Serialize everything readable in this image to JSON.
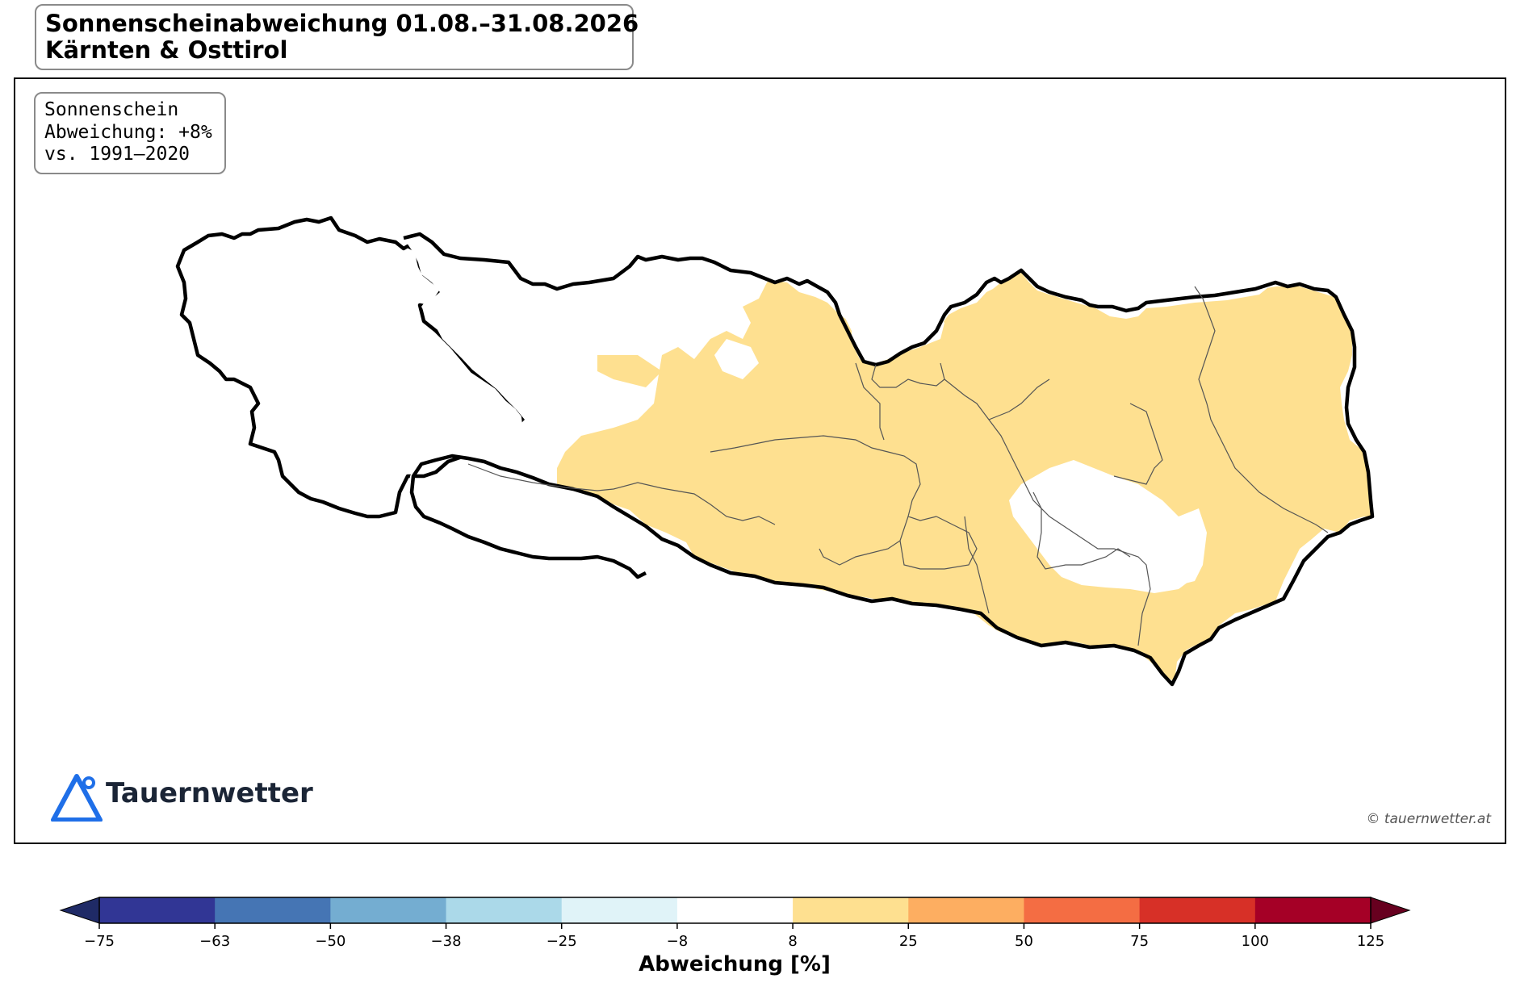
{
  "title": {
    "line1": "Sonnenscheinabweichung 01.08.–31.08.2026",
    "line2": "Kärnten & Osttirol"
  },
  "info_box": {
    "line1": "Sonnenschein",
    "line2": "Abweichung: +8%",
    "line3": "vs. 1991–2020"
  },
  "brand": {
    "name": "Tauernwetter",
    "icon": "mountain-triangle-icon",
    "color": "#1f6fe8"
  },
  "copyright": "© tauernwetter.at",
  "colorbar": {
    "label": "Abweichung [%]",
    "ticks": [
      "−75",
      "−63",
      "−50",
      "−38",
      "−25",
      "−8",
      "8",
      "25",
      "50",
      "75",
      "100",
      "125"
    ],
    "colors": [
      "#313695",
      "#4575b4",
      "#74add1",
      "#abd9e9",
      "#e0f3f8",
      "#ffffff",
      "#fee090",
      "#fdae61",
      "#f46d43",
      "#d73027",
      "#a50026"
    ],
    "under_color": "#1f2a66",
    "over_color": "#67001f"
  },
  "map": {
    "fill_colors": {
      "positive_small": "#fee090",
      "neutral": "#ffffff",
      "negative_small": "#e0f3f8"
    },
    "outline_color": "#000000",
    "district_line_color": "#555555"
  }
}
